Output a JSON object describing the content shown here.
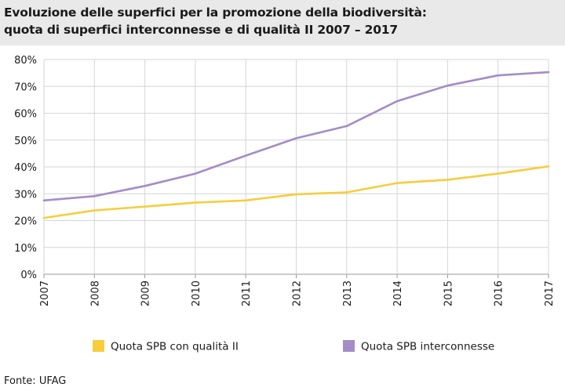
{
  "header": {
    "title_line1": "Evoluzione delle superfici per la promozione della biodiversità:",
    "title_line2": "quota di superfici interconnesse e di qualità II 2007 – 2017"
  },
  "footer": {
    "source": "Fonte: UFAG"
  },
  "chart_data": {
    "type": "line",
    "title": "Evoluzione delle superfici per la promozione della biodiversità: quota di superfici interconnesse e di qualità II 2007 – 2017",
    "xlabel": "",
    "ylabel": "",
    "x": [
      "2007",
      "2008",
      "2009",
      "2010",
      "2011",
      "2012",
      "2013",
      "2014",
      "2015",
      "2016",
      "2017"
    ],
    "ylim": [
      0,
      80
    ],
    "yticks": [
      "0%",
      "10%",
      "20%",
      "30%",
      "40%",
      "50%",
      "60%",
      "70%",
      "80%"
    ],
    "ytick_values": [
      0,
      10,
      20,
      30,
      40,
      50,
      60,
      70,
      80
    ],
    "grid": true,
    "legend_position": "bottom",
    "series": [
      {
        "name": "Quota SPB con qualità II",
        "color": "#f7cd3b",
        "values": [
          21,
          23.8,
          25.2,
          26.7,
          27.5,
          29.8,
          30.5,
          34,
          35.2,
          37.5,
          40.2
        ]
      },
      {
        "name": "Quota SPB interconnesse",
        "color": "#a58cc6",
        "values": [
          27.5,
          29.1,
          32.9,
          37.5,
          44.2,
          50.7,
          55.2,
          64.5,
          70.3,
          74.1,
          75.3
        ]
      }
    ]
  }
}
